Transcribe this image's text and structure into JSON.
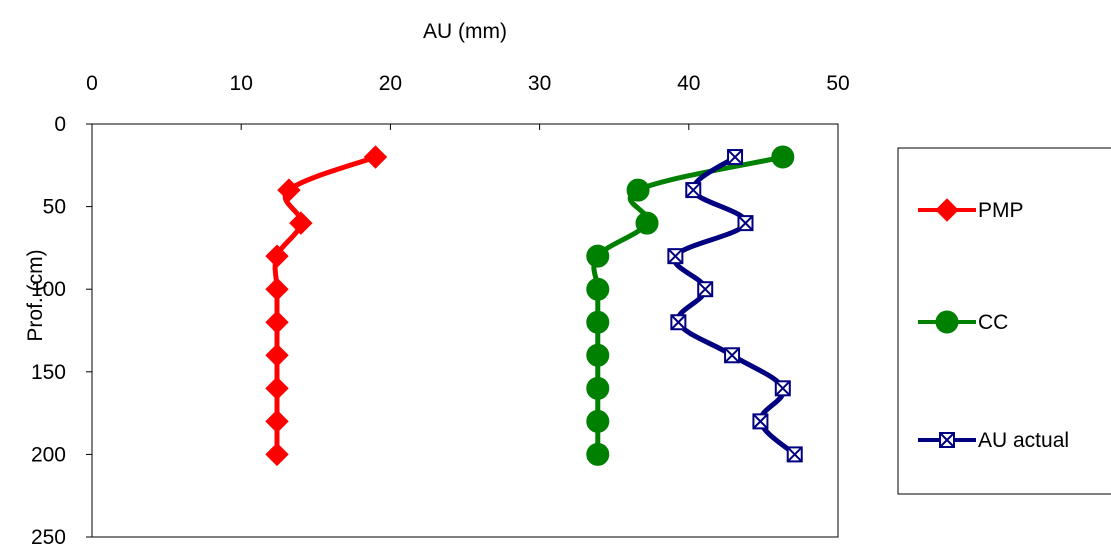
{
  "chart_data": {
    "type": "line",
    "title": "",
    "xlabel": "AU (mm)",
    "ylabel": "Prof. (cm)",
    "xlim": [
      0,
      50
    ],
    "ylim": [
      0,
      250
    ],
    "y_inverted": true,
    "x_axis_position": "top",
    "x_ticks": [
      0,
      10,
      20,
      30,
      40,
      50
    ],
    "y_ticks": [
      0,
      50,
      100,
      150,
      200,
      250
    ],
    "grid": false,
    "legend_position": "right",
    "series": [
      {
        "name": "PMP",
        "color": "#ff0000",
        "marker": "diamond",
        "points": [
          {
            "x": 19.0,
            "y": 20
          },
          {
            "x": 13.2,
            "y": 40
          },
          {
            "x": 14.0,
            "y": 60
          },
          {
            "x": 12.4,
            "y": 80
          },
          {
            "x": 12.4,
            "y": 100
          },
          {
            "x": 12.4,
            "y": 120
          },
          {
            "x": 12.4,
            "y": 140
          },
          {
            "x": 12.4,
            "y": 160
          },
          {
            "x": 12.4,
            "y": 180
          },
          {
            "x": 12.4,
            "y": 200
          }
        ]
      },
      {
        "name": "CC",
        "color": "#008000",
        "marker": "circle",
        "points": [
          {
            "x": 46.3,
            "y": 20
          },
          {
            "x": 36.6,
            "y": 40
          },
          {
            "x": 37.2,
            "y": 60
          },
          {
            "x": 33.9,
            "y": 80
          },
          {
            "x": 33.9,
            "y": 100
          },
          {
            "x": 33.9,
            "y": 120
          },
          {
            "x": 33.9,
            "y": 140
          },
          {
            "x": 33.9,
            "y": 160
          },
          {
            "x": 33.9,
            "y": 180
          },
          {
            "x": 33.9,
            "y": 200
          }
        ]
      },
      {
        "name": "AU actual",
        "color": "#000080",
        "marker": "x-square",
        "points": [
          {
            "x": 43.1,
            "y": 20
          },
          {
            "x": 40.3,
            "y": 40
          },
          {
            "x": 43.8,
            "y": 60
          },
          {
            "x": 39.1,
            "y": 80
          },
          {
            "x": 41.1,
            "y": 100
          },
          {
            "x": 39.3,
            "y": 120
          },
          {
            "x": 42.9,
            "y": 140
          },
          {
            "x": 46.3,
            "y": 160
          },
          {
            "x": 44.8,
            "y": 180
          },
          {
            "x": 47.1,
            "y": 200
          }
        ]
      }
    ]
  }
}
